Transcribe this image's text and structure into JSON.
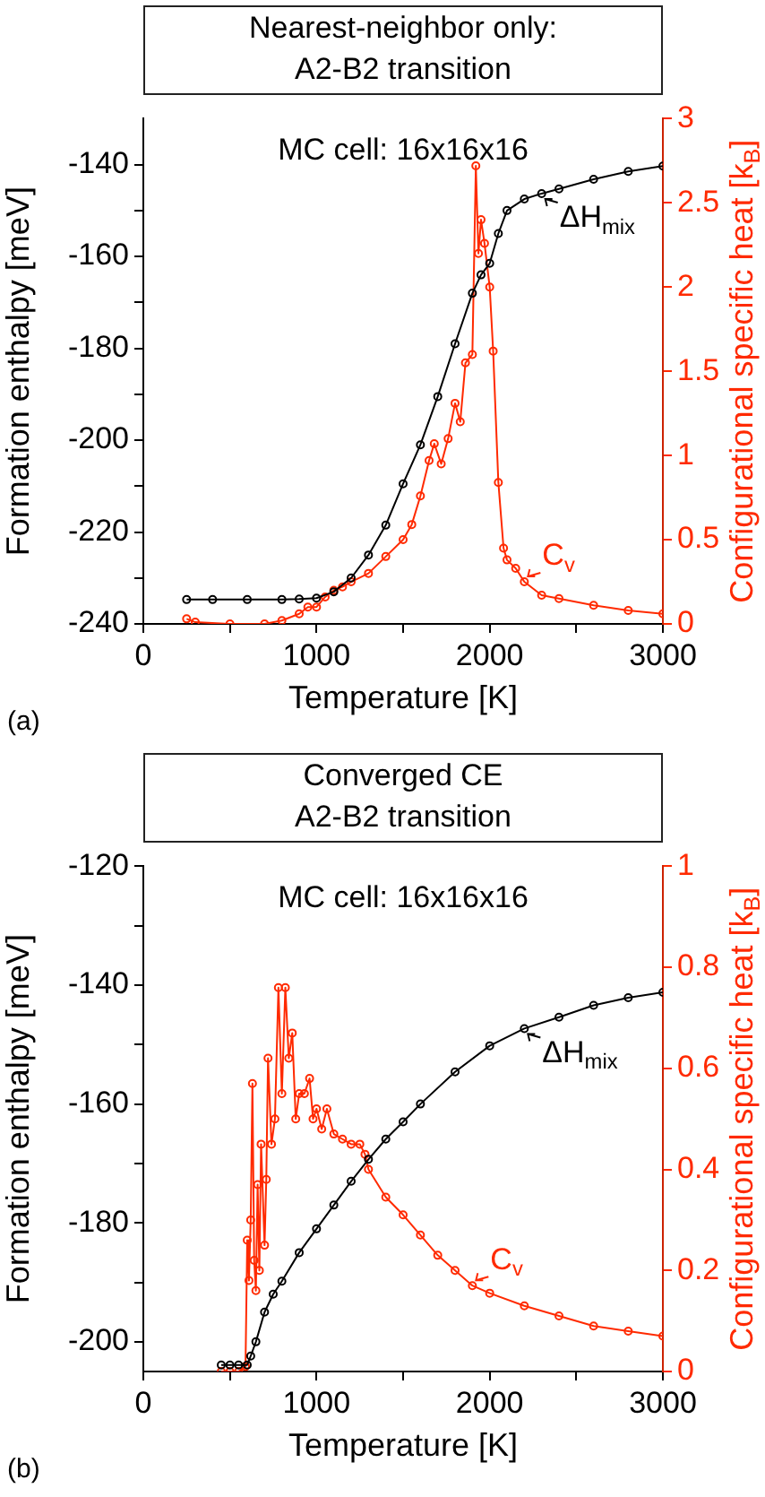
{
  "chart_data": [
    {
      "type": "line",
      "title": "Nearest-neighbor only:",
      "subtitle": "A2-B2 transition",
      "xlabel": "Temperature [K]",
      "ylabel": "Formation enthalpy [meV]",
      "y2label": "Configurational specific heat [k$_{B}$]",
      "annotations": [
        "MC cell: 16x16x16",
        "(a)"
      ],
      "xlim": [
        0,
        3000
      ],
      "xticks": [
        0,
        {
          "value": 500,
          "label": null
        },
        1000,
        {
          "value": 1500,
          "label": null
        },
        2000,
        {
          "value": 2500,
          "label": null
        },
        3000
      ],
      "ylim": [
        -240,
        -130
      ],
      "yticks": [
        -240,
        {
          "value": -230,
          "label": null
        },
        -220,
        {
          "value": -210,
          "label": null
        },
        -200,
        {
          "value": -190,
          "label": null
        },
        -180,
        {
          "value": -170,
          "label": null
        },
        -160,
        {
          "value": -150,
          "label": null
        },
        -140
      ],
      "y2lim": [
        0,
        3
      ],
      "y2ticks": [
        0,
        0.5,
        1,
        1.5,
        2,
        2.5,
        3
      ],
      "grid": false,
      "legend": "right",
      "marker": "circle",
      "line_style": "solid",
      "series": [
        {
          "name": "ΔH$_{mix}$",
          "color": "#000000",
          "x": [
            250,
            400,
            600,
            800,
            900,
            1000,
            1100,
            1200,
            1300,
            1400,
            1500,
            1600,
            1700,
            1800,
            1900,
            1950,
            2000,
            2050,
            2100,
            2200,
            2300,
            2400,
            2600,
            2800,
            3000
          ],
          "values": [
            -234.7,
            -234.7,
            -234.7,
            -234.7,
            -234.6,
            -234.4,
            -233,
            -230,
            -225,
            -218.5,
            -209.5,
            -201,
            -190.5,
            -179,
            -168,
            -164,
            -161.5,
            -155,
            -150,
            -147.5,
            -146.3,
            -145.3,
            -143.2,
            -141.5,
            -140.3
          ]
        },
        {
          "name": "C$_{v}$",
          "color": "#ff2a00",
          "axis": "y2",
          "x": [
            250,
            300,
            500,
            700,
            800,
            900,
            950,
            1000,
            1050,
            1100,
            1150,
            1200,
            1300,
            1400,
            1500,
            1550,
            1600,
            1650,
            1680,
            1720,
            1760,
            1800,
            1830,
            1860,
            1900,
            1920,
            1935,
            1950,
            1970,
            2000,
            2020,
            2050,
            2080,
            2100,
            2150,
            2200,
            2300,
            2400,
            2600,
            2800,
            3000
          ],
          "values": [
            0.03,
            0.01,
            0,
            0,
            0.02,
            0.06,
            0.1,
            0.1,
            0.16,
            0.2,
            0.22,
            0.25,
            0.3,
            0.4,
            0.5,
            0.59,
            0.76,
            0.97,
            1.07,
            0.95,
            1.1,
            1.31,
            1.2,
            1.55,
            1.6,
            2.72,
            2.2,
            2.4,
            2.26,
            2.0,
            1.62,
            0.84,
            0.45,
            0.38,
            0.33,
            0.25,
            0.17,
            0.15,
            0.11,
            0.08,
            0.06
          ]
        }
      ]
    },
    {
      "type": "line",
      "title": "Converged CE",
      "subtitle": "A2-B2 transition",
      "xlabel": "Temperature [K]",
      "ylabel": "Formation enthalpy [meV]",
      "y2label": "Configurational specific heat [k$_{B}$]",
      "annotations": [
        "MC cell: 16x16x16",
        "(b)"
      ],
      "xlim": [
        0,
        3000
      ],
      "xticks": [
        0,
        {
          "value": 500,
          "label": null
        },
        1000,
        {
          "value": 1500,
          "label": null
        },
        2000,
        {
          "value": 2500,
          "label": null
        },
        3000
      ],
      "ylim": [
        -205,
        -120
      ],
      "yticks": [
        -200,
        {
          "value": -190,
          "label": null
        },
        -180,
        {
          "value": -170,
          "label": null
        },
        -160,
        {
          "value": -150,
          "label": null
        },
        -140,
        {
          "value": -130,
          "label": null
        },
        -120
      ],
      "y2lim": [
        0,
        1
      ],
      "y2ticks": [
        0,
        0.2,
        0.4,
        0.6,
        0.8,
        1
      ],
      "grid": false,
      "legend": "right",
      "marker": "circle",
      "line_style": "solid",
      "series": [
        {
          "name": "ΔH$_{mix}$",
          "color": "#000000",
          "x": [
            450,
            500,
            550,
            600,
            620,
            650,
            700,
            750,
            800,
            900,
            1000,
            1100,
            1200,
            1300,
            1400,
            1500,
            1600,
            1800,
            2000,
            2200,
            2400,
            2600,
            2800,
            3000
          ],
          "values": [
            -203.9,
            -203.9,
            -203.9,
            -203.9,
            -202.4,
            -200,
            -195,
            -192,
            -189.8,
            -185,
            -181,
            -177,
            -173,
            -169.3,
            -165.9,
            -163,
            -160,
            -154.6,
            -150.2,
            -147.3,
            -145.4,
            -143.4,
            -142.1,
            -141.2
          ]
        },
        {
          "name": "C$_{v}$",
          "color": "#ff2a00",
          "axis": "y2",
          "x": [
            450,
            500,
            550,
            590,
            600,
            610,
            620,
            630,
            640,
            650,
            660,
            670,
            680,
            700,
            710,
            720,
            740,
            760,
            780,
            800,
            820,
            840,
            860,
            880,
            900,
            930,
            960,
            980,
            1000,
            1030,
            1060,
            1100,
            1150,
            1200,
            1250,
            1280,
            1300,
            1400,
            1500,
            1600,
            1700,
            1800,
            1900,
            2000,
            2200,
            2400,
            2600,
            2800,
            3000
          ],
          "values": [
            0,
            0,
            0,
            0.01,
            0.26,
            0.18,
            0.3,
            0.57,
            0.22,
            0.16,
            0.37,
            0.2,
            0.45,
            0.25,
            0.38,
            0.62,
            0.45,
            0.5,
            0.76,
            0.55,
            0.76,
            0.62,
            0.67,
            0.5,
            0.55,
            0.55,
            0.58,
            0.5,
            0.52,
            0.48,
            0.52,
            0.47,
            0.46,
            0.45,
            0.45,
            0.43,
            0.4,
            0.345,
            0.31,
            0.27,
            0.23,
            0.2,
            0.17,
            0.155,
            0.13,
            0.11,
            0.09,
            0.08,
            0.07
          ]
        }
      ]
    }
  ]
}
